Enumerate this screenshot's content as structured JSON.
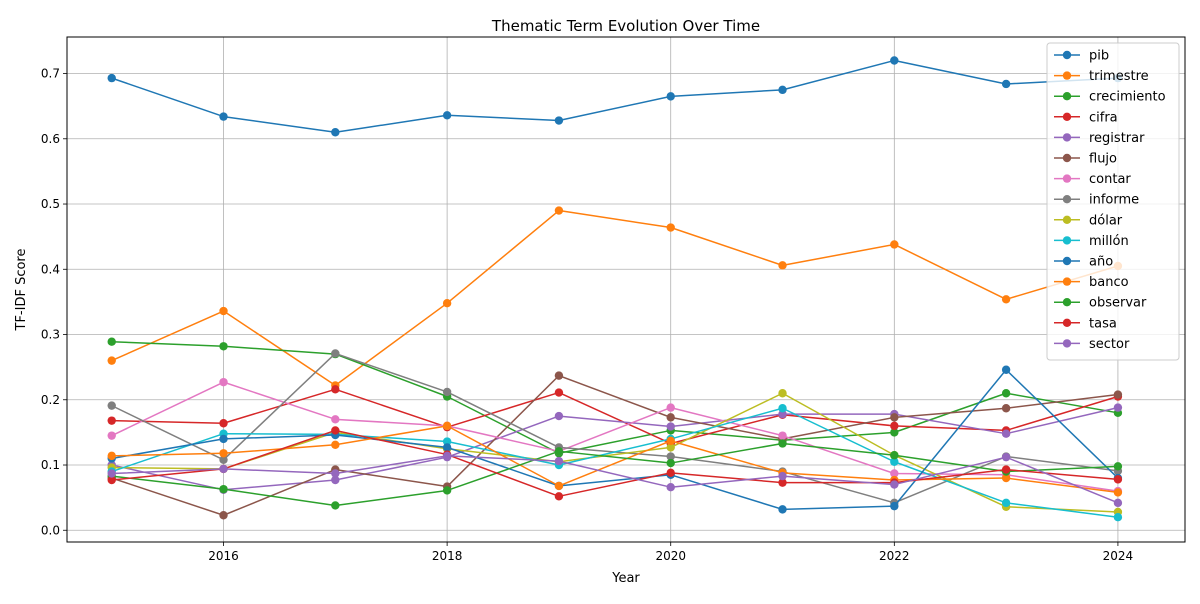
{
  "chart_data": {
    "type": "line",
    "title": "Thematic Term Evolution Over Time",
    "xlabel": "Year",
    "ylabel": "TF-IDF Score",
    "xlim": [
      2014.6,
      2024.6
    ],
    "ylim": [
      -0.018,
      0.756
    ],
    "x_ticks": [
      2016,
      2018,
      2020,
      2022,
      2024
    ],
    "y_ticks": [
      0.0,
      0.1,
      0.2,
      0.3,
      0.4,
      0.5,
      0.6,
      0.7
    ],
    "grid": true,
    "legend_position": "top-right",
    "x": [
      2015,
      2016,
      2017,
      2018,
      2019,
      2020,
      2021,
      2022,
      2023,
      2024
    ],
    "series": [
      {
        "name": "pib",
        "color": "#1f77b4",
        "values": [
          0.693,
          0.634,
          0.61,
          0.636,
          0.628,
          0.665,
          0.675,
          0.72,
          0.684,
          0.693
        ]
      },
      {
        "name": "trimestre",
        "color": "#ff7f0e",
        "values": [
          0.26,
          0.336,
          0.222,
          0.348,
          0.49,
          0.464,
          0.406,
          0.438,
          0.354,
          0.405
        ]
      },
      {
        "name": "crecimiento",
        "color": "#2ca02c",
        "values": [
          0.289,
          0.282,
          0.27,
          0.205,
          0.118,
          0.153,
          0.138,
          0.15,
          0.21,
          0.18
        ]
      },
      {
        "name": "cifra",
        "color": "#d62728",
        "values": [
          0.168,
          0.164,
          0.216,
          0.158,
          0.211,
          0.133,
          0.177,
          0.16,
          0.153,
          0.205
        ]
      },
      {
        "name": "registrar",
        "color": "#9467bd",
        "values": [
          0.1,
          0.062,
          0.077,
          0.112,
          0.175,
          0.159,
          0.178,
          0.178,
          0.148,
          0.188
        ]
      },
      {
        "name": "flujo",
        "color": "#8c564b",
        "values": [
          0.08,
          0.023,
          0.093,
          0.067,
          0.237,
          0.173,
          0.14,
          0.173,
          0.187,
          0.208
        ]
      },
      {
        "name": "contar",
        "color": "#e377c2",
        "values": [
          0.145,
          0.227,
          0.17,
          0.16,
          0.121,
          0.188,
          0.145,
          0.087,
          0.085,
          0.06
        ]
      },
      {
        "name": "informe",
        "color": "#7f7f7f",
        "values": [
          0.191,
          0.108,
          0.271,
          0.212,
          0.127,
          0.113,
          0.09,
          0.042,
          0.113,
          0.091
        ]
      },
      {
        "name": "dólar",
        "color": "#bcbd22",
        "values": [
          0.096,
          0.094,
          0.15,
          0.125,
          0.105,
          0.127,
          0.21,
          0.115,
          0.036,
          0.028
        ]
      },
      {
        "name": "millón",
        "color": "#17becf",
        "values": [
          0.09,
          0.148,
          0.147,
          0.136,
          0.1,
          0.14,
          0.187,
          0.105,
          0.042,
          0.02
        ]
      },
      {
        "name": "año",
        "color": "#1f77b4",
        "values": [
          0.11,
          0.14,
          0.146,
          0.127,
          0.068,
          0.085,
          0.032,
          0.037,
          0.246,
          0.08
        ]
      },
      {
        "name": "banco",
        "color": "#ff7f0e",
        "values": [
          0.114,
          0.118,
          0.131,
          0.16,
          0.068,
          0.137,
          0.088,
          0.077,
          0.08,
          0.058
        ]
      },
      {
        "name": "observar",
        "color": "#2ca02c",
        "values": [
          0.083,
          0.063,
          0.038,
          0.061,
          0.121,
          0.103,
          0.133,
          0.115,
          0.09,
          0.098
        ]
      },
      {
        "name": "tasa",
        "color": "#d62728",
        "values": [
          0.077,
          0.094,
          0.153,
          0.116,
          0.052,
          0.088,
          0.073,
          0.073,
          0.093,
          0.078
        ]
      },
      {
        "name": "sector",
        "color": "#9467bd",
        "values": [
          0.087,
          0.094,
          0.087,
          0.114,
          0.106,
          0.066,
          0.083,
          0.07,
          0.112,
          0.042
        ]
      }
    ]
  }
}
